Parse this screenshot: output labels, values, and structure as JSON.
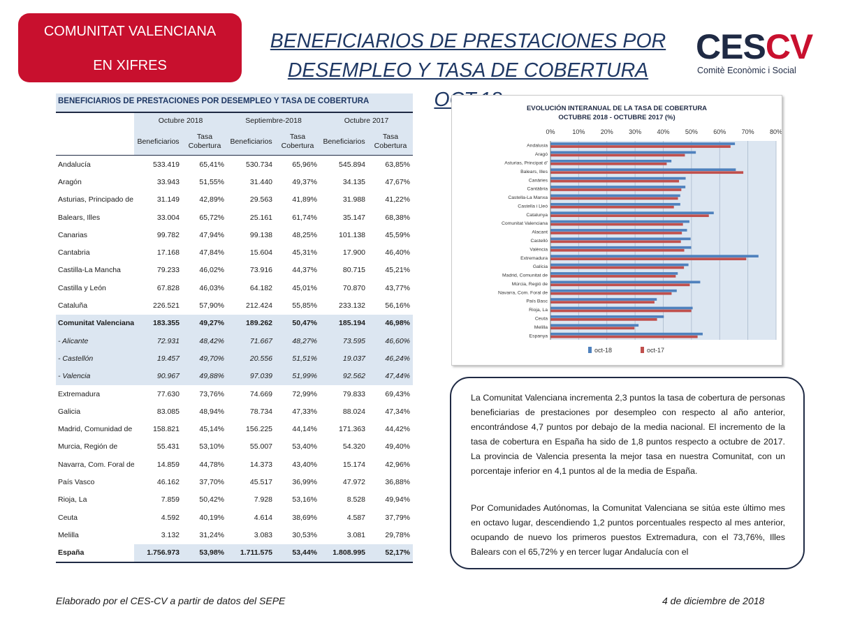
{
  "header": {
    "badge_line1": "COMUNITAT VALENCIANA",
    "badge_line2": "EN XIFRES",
    "title_line1": "BENEFICIARIOS DE PRESTACIONES POR",
    "title_line2": "DESEMPLEO Y TASA DE COBERTURA OCT.18",
    "logo_text": "CESCV",
    "logo_sub": "Comitè Econòmic i Social"
  },
  "table": {
    "title": "BENEFICIARIOS DE PRESTACIONES POR DESEMPLEO Y TASA DE COBERTURA",
    "periods": [
      "Octubre 2018",
      "Septiembre-2018",
      "Octubre 2017"
    ],
    "col_benef": "Beneficiarios",
    "col_tasa": "Tasa Cobertura",
    "rows": [
      {
        "name": "Andalucía",
        "v": [
          "533.419",
          "65,41%",
          "530.734",
          "65,96%",
          "545.894",
          "63,85%"
        ]
      },
      {
        "name": "Aragón",
        "v": [
          "33.943",
          "51,55%",
          "31.440",
          "49,37%",
          "34.135",
          "47,67%"
        ]
      },
      {
        "name": "Asturias, Principado de",
        "v": [
          "31.149",
          "42,89%",
          "29.563",
          "41,89%",
          "31.988",
          "41,22%"
        ]
      },
      {
        "name": "Balears, Illes",
        "v": [
          "33.004",
          "65,72%",
          "25.161",
          "61,74%",
          "35.147",
          "68,38%"
        ]
      },
      {
        "name": "Canarias",
        "v": [
          "99.782",
          "47,94%",
          "99.138",
          "48,25%",
          "101.138",
          "45,59%"
        ]
      },
      {
        "name": "Cantabria",
        "v": [
          "17.168",
          "47,84%",
          "15.604",
          "45,31%",
          "17.900",
          "46,40%"
        ]
      },
      {
        "name": "Castilla-La Mancha",
        "v": [
          "79.233",
          "46,02%",
          "73.916",
          "44,37%",
          "80.715",
          "45,21%"
        ]
      },
      {
        "name": "Castilla y León",
        "v": [
          "67.828",
          "46,03%",
          "64.182",
          "45,01%",
          "70.870",
          "43,77%"
        ]
      },
      {
        "name": "Cataluña",
        "v": [
          "226.521",
          "57,90%",
          "212.424",
          "55,85%",
          "233.132",
          "56,16%"
        ]
      },
      {
        "name": "Comunitat Valenciana",
        "v": [
          "183.355",
          "49,27%",
          "189.262",
          "50,47%",
          "185.194",
          "46,98%"
        ]
      },
      {
        "name": "-  Alicante",
        "v": [
          "72.931",
          "48,42%",
          "71.667",
          "48,27%",
          "73.595",
          "46,60%"
        ]
      },
      {
        "name": "- Castellón",
        "v": [
          "19.457",
          "49,70%",
          "20.556",
          "51,51%",
          "19.037",
          "46,24%"
        ]
      },
      {
        "name": "- Valencia",
        "v": [
          "90.967",
          "49,88%",
          "97.039",
          "51,99%",
          "92.562",
          "47,44%"
        ]
      },
      {
        "name": "Extremadura",
        "v": [
          "77.630",
          "73,76%",
          "74.669",
          "72,99%",
          "79.833",
          "69,43%"
        ]
      },
      {
        "name": "Galicia",
        "v": [
          "83.085",
          "48,94%",
          "78.734",
          "47,33%",
          "88.024",
          "47,34%"
        ]
      },
      {
        "name": "Madrid, Comunidad de",
        "v": [
          "158.821",
          "45,14%",
          "156.225",
          "44,14%",
          "171.363",
          "44,42%"
        ]
      },
      {
        "name": "Murcia, Región de",
        "v": [
          "55.431",
          "53,10%",
          "55.007",
          "53,40%",
          "54.320",
          "49,40%"
        ]
      },
      {
        "name": "Navarra, Com. Foral de",
        "v": [
          "14.859",
          "44,78%",
          "14.373",
          "43,40%",
          "15.174",
          "42,96%"
        ]
      },
      {
        "name": "País Vasco",
        "v": [
          "46.162",
          "37,70%",
          "45.517",
          "36,99%",
          "47.972",
          "36,88%"
        ]
      },
      {
        "name": "Rioja, La",
        "v": [
          "7.859",
          "50,42%",
          "7.928",
          "53,16%",
          "8.528",
          "49,94%"
        ]
      },
      {
        "name": "Ceuta",
        "v": [
          "4.592",
          "40,19%",
          "4.614",
          "38,69%",
          "4.587",
          "37,79%"
        ]
      },
      {
        "name": "Melilla",
        "v": [
          "3.132",
          "31,24%",
          "3.083",
          "30,53%",
          "3.081",
          "29,78%"
        ]
      },
      {
        "name": "España",
        "v": [
          "1.756.973",
          "53,98%",
          "1.711.575",
          "53,44%",
          "1.808.995",
          "52,17%"
        ]
      }
    ]
  },
  "chart_data": {
    "type": "bar",
    "orientation": "horizontal",
    "title": "EVOLUCIÓN  INTERANUAL DE LA TASA DE COBERTURA",
    "subtitle": "OCTUBRE 2018 - OCTUBRE 2017 (%)",
    "xlim": [
      0,
      80
    ],
    "xticks": [
      "0%",
      "10%",
      "20%",
      "30%",
      "40%",
      "50%",
      "60%",
      "70%",
      "80%"
    ],
    "grid": true,
    "legend_position": "bottom",
    "categories": [
      "Andalusia",
      "Aragó",
      "Asturias, Principat d'",
      "Balears, Illes",
      "Canàries",
      "Cantàbria",
      "Castella-La Manxa",
      "Castella i Lleó",
      "Catalunya",
      "Comunitat Valenciana",
      "Alacant",
      "Castelló",
      "València",
      "Extremadura",
      "Galícia",
      "Madrid, Comunitat de",
      "Múrcia, Regió de",
      "Navarra, Com. Foral de",
      "País Basc",
      "Rioja, La",
      "Ceuta",
      "Melilla",
      "Espanya"
    ],
    "series": [
      {
        "name": "oct-18",
        "color": "#4f81bd",
        "values": [
          65.41,
          51.55,
          42.89,
          65.72,
          47.94,
          47.84,
          46.02,
          46.03,
          57.9,
          49.27,
          48.42,
          49.7,
          49.88,
          73.76,
          48.94,
          45.14,
          53.1,
          44.78,
          37.7,
          50.42,
          40.19,
          31.24,
          53.98
        ]
      },
      {
        "name": "oct-17",
        "color": "#c0504d",
        "values": [
          63.85,
          47.67,
          41.22,
          68.38,
          45.59,
          46.4,
          45.21,
          43.77,
          56.16,
          46.98,
          46.6,
          46.24,
          47.44,
          69.43,
          47.34,
          44.42,
          49.4,
          42.96,
          36.88,
          49.94,
          37.79,
          29.78,
          52.17
        ]
      }
    ]
  },
  "note": {
    "p1": "La Comunitat Valenciana incrementa 2,3 puntos la tasa de cobertura de personas beneficiarias de prestaciones por desempleo con respecto al año anterior, encontrándose 4,7 puntos por debajo de la media nacional. El incremento de la tasa de cobertura en España ha sido de 1,8 puntos respecto a octubre de 2017. La provincia de Valencia presenta la mejor tasa en nuestra Comunitat, con un porcentaje inferior en 4,1 puntos al de la media de España.",
    "p2": "Por Comunidades Autónomas, la Comunitat Valenciana se sitúa este último mes en octavo lugar, descendiendo 1,2 puntos porcentuales respecto al mes anterior, ocupando de nuevo los primeros puestos Extremadura, con el 73,76%, Illes Balears con el 65,72% y en tercer lugar Andalucía con el"
  },
  "footer": {
    "source": "Elaborado por el CES-CV a partir de datos del SEPE",
    "date": "4 de diciembre de 2018"
  }
}
